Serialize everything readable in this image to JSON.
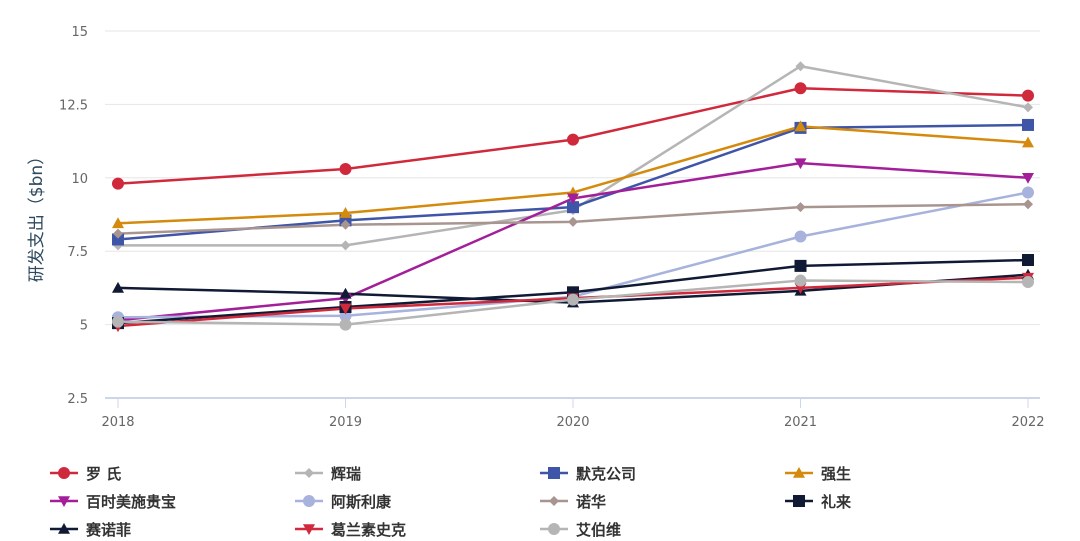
{
  "chart_data": {
    "type": "line",
    "title": "",
    "xlabel": "",
    "ylabel": "研发支出（$bn）",
    "x": [
      "2018",
      "2019",
      "2020",
      "2021",
      "2022"
    ],
    "yticks": [
      "2.5",
      "5",
      "7.5",
      "10",
      "12.5",
      "15"
    ],
    "ylim": [
      2.5,
      15
    ],
    "grid": true,
    "legend_position": "bottom",
    "series": [
      {
        "name": "罗 氏",
        "color": "#d0293b",
        "marker": "circle",
        "values": [
          9.8,
          10.3,
          11.3,
          13.05,
          12.8
        ]
      },
      {
        "name": "辉瑞",
        "color": "#b5b5b5",
        "marker": "diamond",
        "values": [
          7.7,
          7.7,
          8.9,
          13.8,
          12.4
        ]
      },
      {
        "name": "默克公司",
        "color": "#3f55a8",
        "marker": "square",
        "values": [
          7.9,
          8.55,
          9.0,
          11.7,
          11.8
        ]
      },
      {
        "name": "强生",
        "color": "#d48a0c",
        "marker": "triangle-up",
        "values": [
          8.45,
          8.8,
          9.5,
          11.75,
          11.2
        ]
      },
      {
        "name": "百时美施贵宝",
        "color": "#a31f9a",
        "marker": "triangle-down",
        "values": [
          5.15,
          5.9,
          9.3,
          10.5,
          10.0
        ]
      },
      {
        "name": "阿斯利康",
        "color": "#a7b3dc",
        "marker": "circle",
        "values": [
          5.25,
          5.3,
          5.95,
          8.0,
          9.5
        ]
      },
      {
        "name": "诺华",
        "color": "#a89590",
        "marker": "diamond",
        "values": [
          8.1,
          8.4,
          8.5,
          9.0,
          9.1
        ]
      },
      {
        "name": "礼来",
        "color": "#101a35",
        "marker": "square",
        "values": [
          5.05,
          5.6,
          6.1,
          7.0,
          7.2
        ]
      },
      {
        "name": "赛诺菲",
        "color": "#101a35",
        "marker": "triangle-up",
        "values": [
          6.25,
          6.05,
          5.75,
          6.15,
          6.7
        ]
      },
      {
        "name": "葛兰素史克",
        "color": "#d0293b",
        "marker": "triangle-down",
        "values": [
          4.95,
          5.55,
          5.9,
          6.25,
          6.6
        ]
      },
      {
        "name": "艾伯维",
        "color": "#b5b5b5",
        "marker": "circle",
        "values": [
          5.1,
          5.0,
          5.85,
          6.5,
          6.45
        ]
      }
    ]
  }
}
